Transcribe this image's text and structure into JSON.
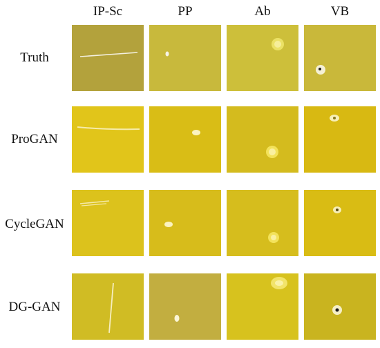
{
  "columns": [
    "IP-Sc",
    "PP",
    "Ab",
    "VB"
  ],
  "rows": [
    {
      "label": "Truth",
      "colors": [
        "#b3a23c",
        "#c8b93c",
        "#cdbf3a",
        "#c9b83a"
      ]
    },
    {
      "label": "ProGAN",
      "colors": [
        "#e1c51a",
        "#d9bd16",
        "#d4bb1e",
        "#d8b912"
      ]
    },
    {
      "label": "CycleGAN",
      "colors": [
        "#dcc21c",
        "#d7bc1b",
        "#d6bd1d",
        "#d9bc14"
      ]
    },
    {
      "label": "DG-GAN",
      "colors": [
        "#d0bc24",
        "#c2ae40",
        "#d7c21e",
        "#c9b41f"
      ]
    }
  ]
}
